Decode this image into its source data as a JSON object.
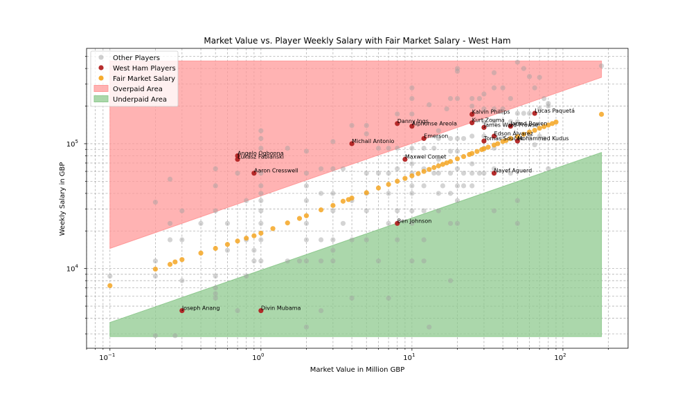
{
  "chart_data": {
    "type": "scatter",
    "title": "Market Value vs. Player Weekly Salary with Fair Market Salary - West Ham",
    "xlabel": "Market Value in Million GBP",
    "ylabel": "Weekly Salary in GBP",
    "xscale": "log",
    "yscale": "log",
    "xlim": [
      0.07,
      270
    ],
    "ylim": [
      2300,
      580000
    ],
    "grid": true,
    "legend_position": "top-left",
    "x_ticks": [
      {
        "value": 0.1,
        "base": "10",
        "exp": "−1"
      },
      {
        "value": 1,
        "base": "10",
        "exp": "0"
      },
      {
        "value": 10,
        "base": "10",
        "exp": "1"
      },
      {
        "value": 100,
        "base": "10",
        "exp": "2"
      }
    ],
    "y_ticks": [
      {
        "value": 10000,
        "base": "10",
        "exp": "4"
      },
      {
        "value": 100000,
        "base": "10",
        "exp": "5"
      }
    ],
    "legend": [
      {
        "label": "Other Players",
        "kind": "marker",
        "color": "#a0a0a0"
      },
      {
        "label": "West Ham Players",
        "kind": "marker",
        "color": "#b22222"
      },
      {
        "label": "Fair Market Salary",
        "kind": "marker",
        "color": "#f5a623"
      },
      {
        "label": "Overpaid Area",
        "kind": "patch",
        "color": "#ff9999"
      },
      {
        "label": "Underpaid Area",
        "kind": "patch",
        "color": "#8fc98f"
      }
    ],
    "colors": {
      "other": "#a0a0a0",
      "west_ham": "#b22222",
      "fair": "#f5a623",
      "overpaid_fill": "#ff9999",
      "underpaid_fill": "#8fc98f"
    },
    "overpaid_area": {
      "x": [
        0.1,
        180
      ],
      "lower": [
        14500,
        340000
      ],
      "upper": [
        460000,
        460000
      ]
    },
    "underpaid_area": {
      "x": [
        0.1,
        180
      ],
      "lower": [
        2850,
        2850
      ],
      "upper": [
        3700,
        85000
      ]
    },
    "series": [
      {
        "name": "Fair Market Salary",
        "x": [
          0.1,
          0.2,
          0.25,
          0.27,
          0.3,
          0.4,
          0.5,
          0.6,
          0.7,
          0.8,
          0.9,
          1.0,
          1.2,
          1.5,
          1.8,
          2.0,
          2.5,
          3.0,
          3.5,
          3.8,
          4.0,
          5.0,
          6.0,
          7.0,
          8.0,
          9.0,
          10,
          11,
          12,
          13,
          14,
          15,
          16,
          17,
          18,
          20,
          22,
          24,
          25,
          27,
          29,
          30,
          32,
          35,
          37,
          40,
          42,
          45,
          50,
          55,
          60,
          65,
          70,
          75,
          80,
          85,
          90,
          180
        ],
        "y": [
          7300,
          9900,
          10800,
          11300,
          11800,
          13300,
          14500,
          15600,
          16600,
          17500,
          18300,
          19200,
          20900,
          23200,
          25200,
          26500,
          29500,
          32000,
          34600,
          35700,
          36700,
          40500,
          44200,
          47200,
          50000,
          52700,
          55300,
          57600,
          60000,
          62200,
          64400,
          66400,
          68300,
          70200,
          72000,
          75700,
          78900,
          82000,
          83700,
          86600,
          89700,
          91100,
          93800,
          97500,
          100000,
          104000,
          106000,
          110000,
          114000,
          119000,
          124000,
          128000,
          133000,
          137000,
          141000,
          145000,
          149000,
          172000
        ]
      },
      {
        "name": "West Ham Players",
        "points": [
          {
            "label": "Lucas Paquetá",
            "x": 65,
            "y": 175000
          },
          {
            "label": "Kalvin Phillips",
            "x": 25,
            "y": 172000
          },
          {
            "label": "Kurt Zouma",
            "x": 25,
            "y": 147000
          },
          {
            "label": "Danny Ings",
            "x": 8,
            "y": 145000
          },
          {
            "label": "Alphonse Areola",
            "x": 10,
            "y": 138000
          },
          {
            "label": "Jarrod Bowen",
            "x": 45,
            "y": 138000
          },
          {
            "label": "James Ward-Prowse",
            "x": 30,
            "y": 135000
          },
          {
            "label": "Edson Álvarez",
            "x": 35,
            "y": 115000
          },
          {
            "label": "Emerson",
            "x": 12,
            "y": 110000
          },
          {
            "label": "Tomás Souček",
            "x": 30,
            "y": 105000
          },
          {
            "label": "Mohammed Kudus",
            "x": 50,
            "y": 105000
          },
          {
            "label": "Michail Antonio",
            "x": 4,
            "y": 100000
          },
          {
            "label": "Angelo Ogbonna",
            "x": 0.7,
            "y": 80000
          },
          {
            "label": "Łukasz Fabiański",
            "x": 0.7,
            "y": 75000
          },
          {
            "label": "Maxwel Cornet",
            "x": 9,
            "y": 75000
          },
          {
            "label": "Aaron Cresswell",
            "x": 0.9,
            "y": 58000
          },
          {
            "label": "Nayef Aguerd",
            "x": 35,
            "y": 58000
          },
          {
            "label": "Ben Johnson",
            "x": 8,
            "y": 23000
          },
          {
            "label": "Joseph Anang",
            "x": 0.3,
            "y": 4600
          },
          {
            "label": "Divin Mubama",
            "x": 1,
            "y": 4600
          }
        ]
      },
      {
        "name": "Other Players",
        "x": [
          0.1,
          0.2,
          0.2,
          0.2,
          0.2,
          0.25,
          0.25,
          0.25,
          0.27,
          0.3,
          0.3,
          0.3,
          0.3,
          0.4,
          0.5,
          0.5,
          0.5,
          0.5,
          0.5,
          0.5,
          0.5,
          0.6,
          0.6,
          0.7,
          0.7,
          0.8,
          0.8,
          0.8,
          0.9,
          0.9,
          1,
          1,
          1,
          1,
          1,
          1,
          1,
          1,
          1,
          1,
          1,
          1.5,
          1.5,
          1.8,
          2,
          2,
          2,
          2,
          2,
          2,
          2,
          2,
          2.5,
          2.5,
          2.5,
          2.5,
          2.5,
          3,
          3,
          3,
          3,
          3,
          3,
          3,
          3.5,
          3.5,
          4,
          4,
          4,
          4,
          5,
          5,
          5,
          5,
          5,
          5,
          6,
          6,
          6,
          7,
          7,
          7,
          7,
          7,
          8,
          8,
          8,
          8,
          8,
          10,
          10,
          10,
          10,
          10,
          10,
          10,
          10,
          10,
          10,
          10,
          12,
          12,
          12,
          12,
          12,
          12,
          13,
          13,
          14,
          14,
          15,
          15,
          15,
          15,
          15,
          15,
          16,
          17,
          18,
          18,
          18,
          18,
          18,
          18,
          18,
          20,
          20,
          20,
          20,
          20,
          20,
          20,
          20,
          20,
          22,
          22,
          22,
          25,
          25,
          25,
          25,
          25,
          25,
          28,
          28,
          30,
          30,
          30,
          30,
          30,
          30,
          35,
          35,
          35,
          35,
          35,
          35,
          35,
          40,
          40,
          40,
          45,
          45,
          45,
          45,
          50,
          50,
          50,
          50,
          50,
          50,
          55,
          55,
          60,
          60,
          60,
          65,
          65,
          70,
          70,
          70,
          75,
          75,
          80,
          80,
          80,
          180
        ],
        "y": [
          8700,
          34000,
          11500,
          8700,
          2900,
          52000,
          23000,
          17000,
          2900,
          29000,
          17000,
          8000,
          4600,
          23000,
          63000,
          46000,
          29000,
          7000,
          6300,
          5800,
          8700,
          23000,
          14000,
          58000,
          4600,
          35000,
          17000,
          8700,
          14000,
          11500,
          127000,
          110000,
          92000,
          58000,
          46000,
          40000,
          35000,
          29000,
          23000,
          17000,
          11500,
          92000,
          11500,
          11500,
          87000,
          58000,
          46000,
          35000,
          23000,
          17000,
          11500,
          3400,
          63000,
          40000,
          17000,
          11500,
          4600,
          104000,
          63000,
          40000,
          29000,
          17000,
          14000,
          11500,
          63000,
          23000,
          140000,
          35000,
          17000,
          5800,
          140000,
          120000,
          58000,
          40000,
          29000,
          17000,
          92000,
          58000,
          11500,
          92000,
          58000,
          40000,
          23000,
          5800,
          173000,
          92000,
          63000,
          29000,
          17000,
          280000,
          230000,
          173000,
          92000,
          69000,
          58000,
          46000,
          40000,
          29000,
          23000,
          11500,
          92000,
          63000,
          46000,
          29000,
          17000,
          11500,
          205000,
          3400,
          92000,
          58000,
          127000,
          110000,
          75000,
          58000,
          40000,
          29000,
          46000,
          190000,
          230000,
          110000,
          87000,
          58000,
          40000,
          23000,
          8000,
          400000,
          380000,
          230000,
          110000,
          87000,
          63000,
          46000,
          35000,
          23000,
          110000,
          58000,
          46000,
          230000,
          200000,
          115000,
          69000,
          58000,
          46000,
          230000,
          58000,
          250000,
          190000,
          150000,
          115000,
          92000,
          58000,
          370000,
          280000,
          190000,
          150000,
          92000,
          63000,
          29000,
          280000,
          190000,
          110000,
          230000,
          150000,
          110000,
          58000,
          450000,
          175000,
          150000,
          110000,
          35000,
          23000,
          400000,
          175000,
          345000,
          175000,
          115000,
          280000,
          98000,
          340000,
          190000,
          115000,
          230000,
          110000,
          210000,
          200000,
          63000,
          420000
        ]
      }
    ]
  }
}
